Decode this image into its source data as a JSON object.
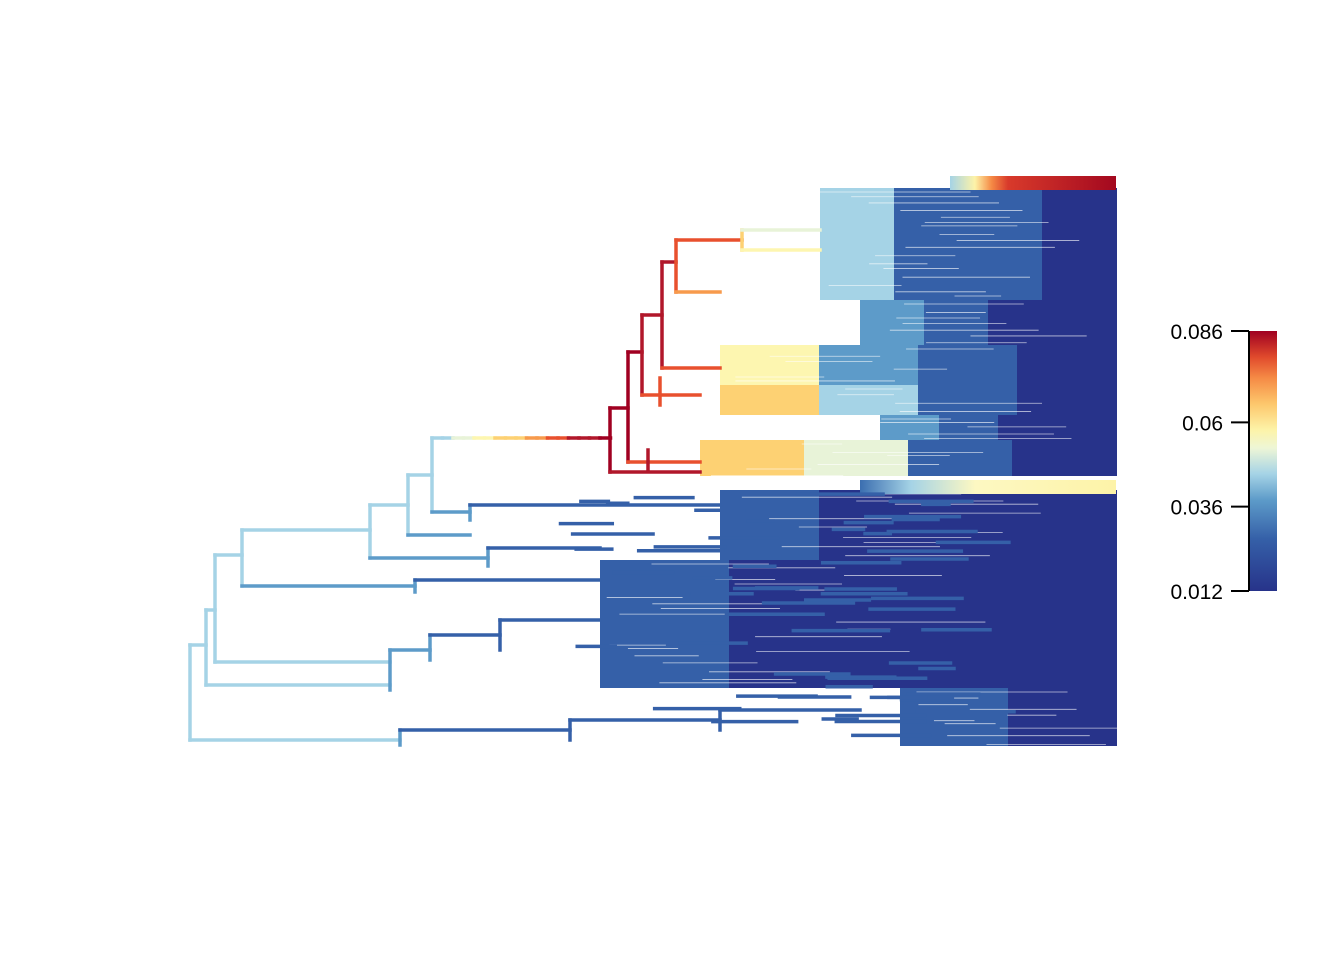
{
  "figure": {
    "type": "phylogenetic-tree-rate-map",
    "tip_count_approx": 500
  },
  "color_legend": {
    "min": 0.012,
    "max": 0.086,
    "ticks": [
      {
        "value": 0.086,
        "label": "0.086"
      },
      {
        "value": 0.06,
        "label": "0.06"
      },
      {
        "value": 0.036,
        "label": "0.036"
      },
      {
        "value": 0.012,
        "label": "0.012"
      }
    ],
    "palette": [
      "#27338a",
      "#3560a8",
      "#5d9bc9",
      "#a5d3e6",
      "#e8f3d8",
      "#fdf6b0",
      "#fdd173",
      "#f79a4c",
      "#e8502e",
      "#b1172a",
      "#a00021"
    ]
  }
}
